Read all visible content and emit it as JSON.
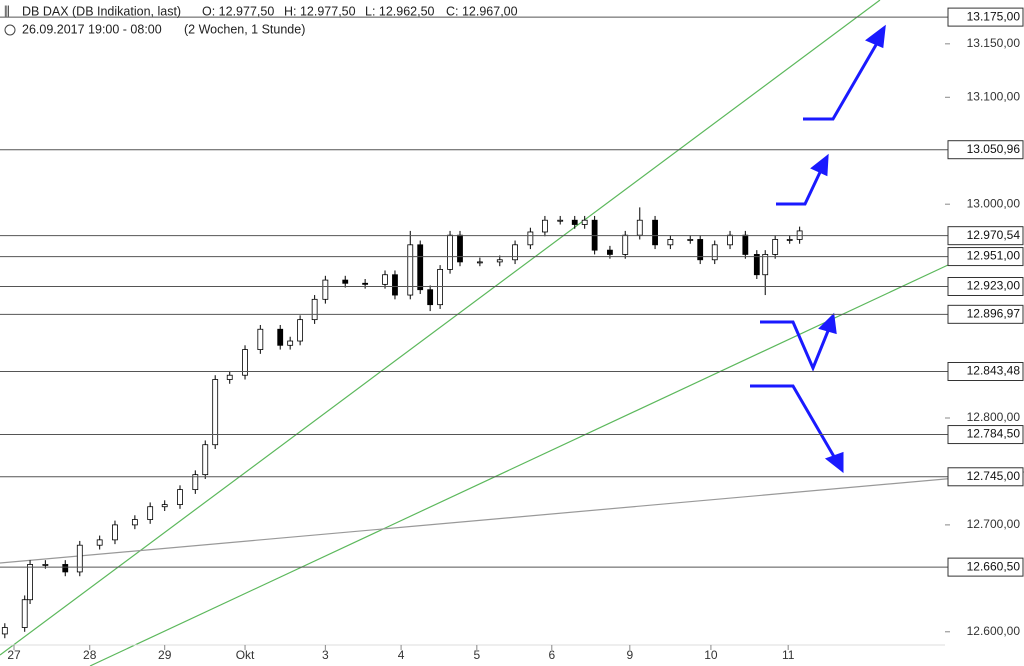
{
  "chart_data": {
    "type": "candlestick",
    "title": "DB DAX (DB Indikation, last)",
    "ohlc_labels": [
      "O: 12.977,50",
      "H: 12.977,50",
      "L: 12.962,50",
      "C: 12.967,00"
    ],
    "subtitle": "26.09.2017 19:00 - 08:00",
    "period": "(2 Wochen, 1 Stunde)",
    "xlim": [
      -0.183,
      12.17
    ],
    "xticks": [
      {
        "value": 0,
        "label": "27"
      },
      {
        "value": 0.99,
        "label": "28"
      },
      {
        "value": 1.97,
        "label": "29"
      },
      {
        "value": 3.02,
        "label": "Okt"
      },
      {
        "value": 4.07,
        "label": "3"
      },
      {
        "value": 5.06,
        "label": "4"
      },
      {
        "value": 6.05,
        "label": "5"
      },
      {
        "value": 7.03,
        "label": "6"
      },
      {
        "value": 8.05,
        "label": "9"
      },
      {
        "value": 9.11,
        "label": "10"
      },
      {
        "value": 10.12,
        "label": "11"
      }
    ],
    "ylim": [
      12568,
      13191
    ],
    "yticks": [
      {
        "value": 12600,
        "label": "12.600,00"
      },
      {
        "value": 12700,
        "label": "12.700,00"
      },
      {
        "value": 12800,
        "label": "12.800,00"
      },
      {
        "value": 13000,
        "label": "13.000,00"
      },
      {
        "value": 13100,
        "label": "13.100,00"
      },
      {
        "value": 13150,
        "label": "13.150,00"
      }
    ],
    "levels": [
      {
        "value": 13175,
        "label": "13.175,00"
      },
      {
        "value": 13050.96,
        "label": "13.050,96"
      },
      {
        "value": 12970.54,
        "label": "12.970,54"
      },
      {
        "value": 12951,
        "label": "12.951,00"
      },
      {
        "value": 12923,
        "label": "12.923,00"
      },
      {
        "value": 12896.97,
        "label": "12.896,97"
      },
      {
        "value": 12843.48,
        "label": "12.843,48"
      },
      {
        "value": 12784.5,
        "label": "12.784,50"
      },
      {
        "value": 12745,
        "label": "12.745,00"
      },
      {
        "value": 12660.5,
        "label": "12.660,50"
      }
    ],
    "x": [
      -0.12,
      0.14,
      0.21,
      0.41,
      0.67,
      0.86,
      1.12,
      1.32,
      1.58,
      1.78,
      1.97,
      2.17,
      2.37,
      2.5,
      2.63,
      2.82,
      3.02,
      3.22,
      3.48,
      3.61,
      3.74,
      3.93,
      4.07,
      4.33,
      4.59,
      4.85,
      4.98,
      5.18,
      5.31,
      5.44,
      5.57,
      5.7,
      5.83,
      6.09,
      6.35,
      6.55,
      6.75,
      6.94,
      7.14,
      7.33,
      7.46,
      7.59,
      7.79,
      7.99,
      8.18,
      8.38,
      8.58,
      8.84,
      8.97,
      9.16,
      9.36,
      9.56,
      9.71,
      9.82,
      9.95,
      10.14,
      10.27
    ],
    "open": [
      12598,
      12604,
      12630,
      12663,
      12663,
      12656,
      12681,
      12686,
      12700,
      12705,
      12717,
      12719,
      12733,
      12747,
      12775,
      12836,
      12840,
      12864,
      12883,
      12868,
      12872,
      12892,
      12911,
      12929,
      12926,
      12925,
      12934,
      12915,
      12962,
      12920,
      12906,
      12939,
      12971,
      12946,
      12946,
      12948,
      12962,
      12974,
      12985,
      12985,
      12981,
      12985,
      12957,
      12953,
      12971,
      12985,
      12962,
      12967,
      12967,
      12948,
      12962,
      12971,
      12953,
      12934,
      12953,
      12967,
      12967
    ],
    "high": [
      12608,
      12634,
      12667,
      12667,
      12667,
      12685,
      12690,
      12704,
      12709,
      12721,
      12723,
      12737,
      12751,
      12779,
      12840,
      12844,
      12868,
      12887,
      12887,
      12876,
      12896,
      12915,
      12933,
      12933,
      12930,
      12938,
      12938,
      12975,
      12966,
      12924,
      12943,
      12975,
      12975,
      12950,
      12952,
      12966,
      12978,
      12989,
      12989,
      12989,
      12989,
      12989,
      12961,
      12975,
      12997,
      12989,
      12971,
      12971,
      12971,
      12966,
      12975,
      12975,
      12957,
      12957,
      12971,
      12971,
      12979
    ],
    "low": [
      12594,
      12600,
      12626,
      12659,
      12652,
      12652,
      12677,
      12682,
      12696,
      12701,
      12713,
      12715,
      12729,
      12743,
      12771,
      12832,
      12836,
      12860,
      12864,
      12864,
      12868,
      12888,
      12907,
      12922,
      12921,
      12921,
      12911,
      12911,
      12916,
      12900,
      12902,
      12935,
      12942,
      12942,
      12942,
      12944,
      12958,
      12970,
      12981,
      12977,
      12977,
      12953,
      12949,
      12949,
      12967,
      12958,
      12958,
      12963,
      12944,
      12944,
      12958,
      12949,
      12930,
      12915,
      12949,
      12963,
      12963
    ],
    "close": [
      12604,
      12630,
      12663,
      12663,
      12656,
      12681,
      12686,
      12700,
      12705,
      12717,
      12719,
      12733,
      12747,
      12775,
      12836,
      12840,
      12864,
      12883,
      12868,
      12872,
      12892,
      12911,
      12929,
      12926,
      12925,
      12934,
      12915,
      12962,
      12920,
      12906,
      12939,
      12971,
      12946,
      12946,
      12948,
      12962,
      12974,
      12985,
      12985,
      12981,
      12985,
      12957,
      12953,
      12971,
      12985,
      12962,
      12967,
      12967,
      12948,
      12962,
      12971,
      12953,
      12934,
      12953,
      12967,
      12967,
      12975
    ],
    "up_color": "#ffffff",
    "down_color": "#000000"
  }
}
